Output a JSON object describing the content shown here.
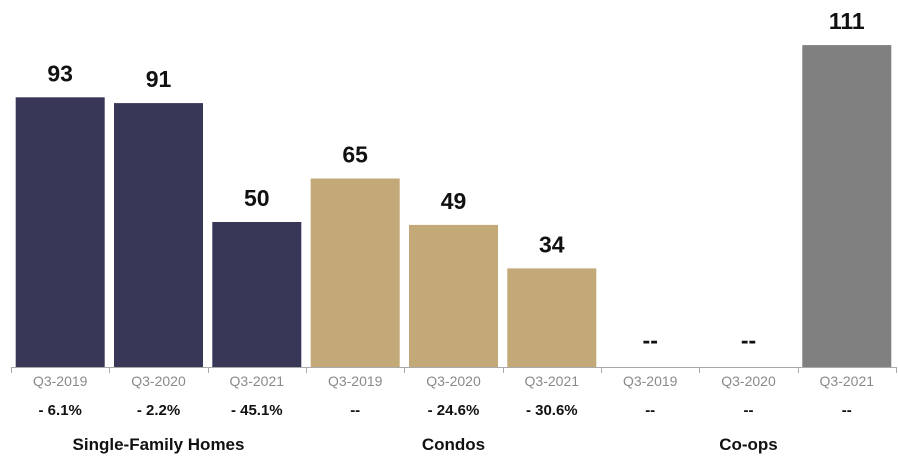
{
  "chart_data": {
    "type": "bar",
    "title": "",
    "xlabel": "",
    "ylabel": "",
    "ylim": [
      0,
      120
    ],
    "grid": false,
    "colors": {
      "single_family": "#393757",
      "condos": "#c3a878",
      "coops": "#808080",
      "axis": "#aaaaaa"
    },
    "groups": [
      {
        "name": "Single-Family Homes",
        "color_key": "single_family",
        "bars": [
          {
            "category": "Q3-2019",
            "value": 93,
            "label": "93",
            "change": "- 6.1%"
          },
          {
            "category": "Q3-2020",
            "value": 91,
            "label": "91",
            "change": "- 2.2%"
          },
          {
            "category": "Q3-2021",
            "value": 50,
            "label": "50",
            "change": "- 45.1%"
          }
        ]
      },
      {
        "name": "Condos",
        "color_key": "condos",
        "bars": [
          {
            "category": "Q3-2019",
            "value": 65,
            "label": "65",
            "change": "--"
          },
          {
            "category": "Q3-2020",
            "value": 49,
            "label": "49",
            "change": "- 24.6%"
          },
          {
            "category": "Q3-2021",
            "value": 34,
            "label": "34",
            "change": "- 30.6%"
          }
        ]
      },
      {
        "name": "Co-ops",
        "color_key": "coops",
        "bars": [
          {
            "category": "Q3-2019",
            "value": null,
            "label": "--",
            "change": "--"
          },
          {
            "category": "Q3-2020",
            "value": null,
            "label": "--",
            "change": "--"
          },
          {
            "category": "Q3-2021",
            "value": 111,
            "label": "111",
            "change": "--"
          }
        ]
      }
    ]
  }
}
